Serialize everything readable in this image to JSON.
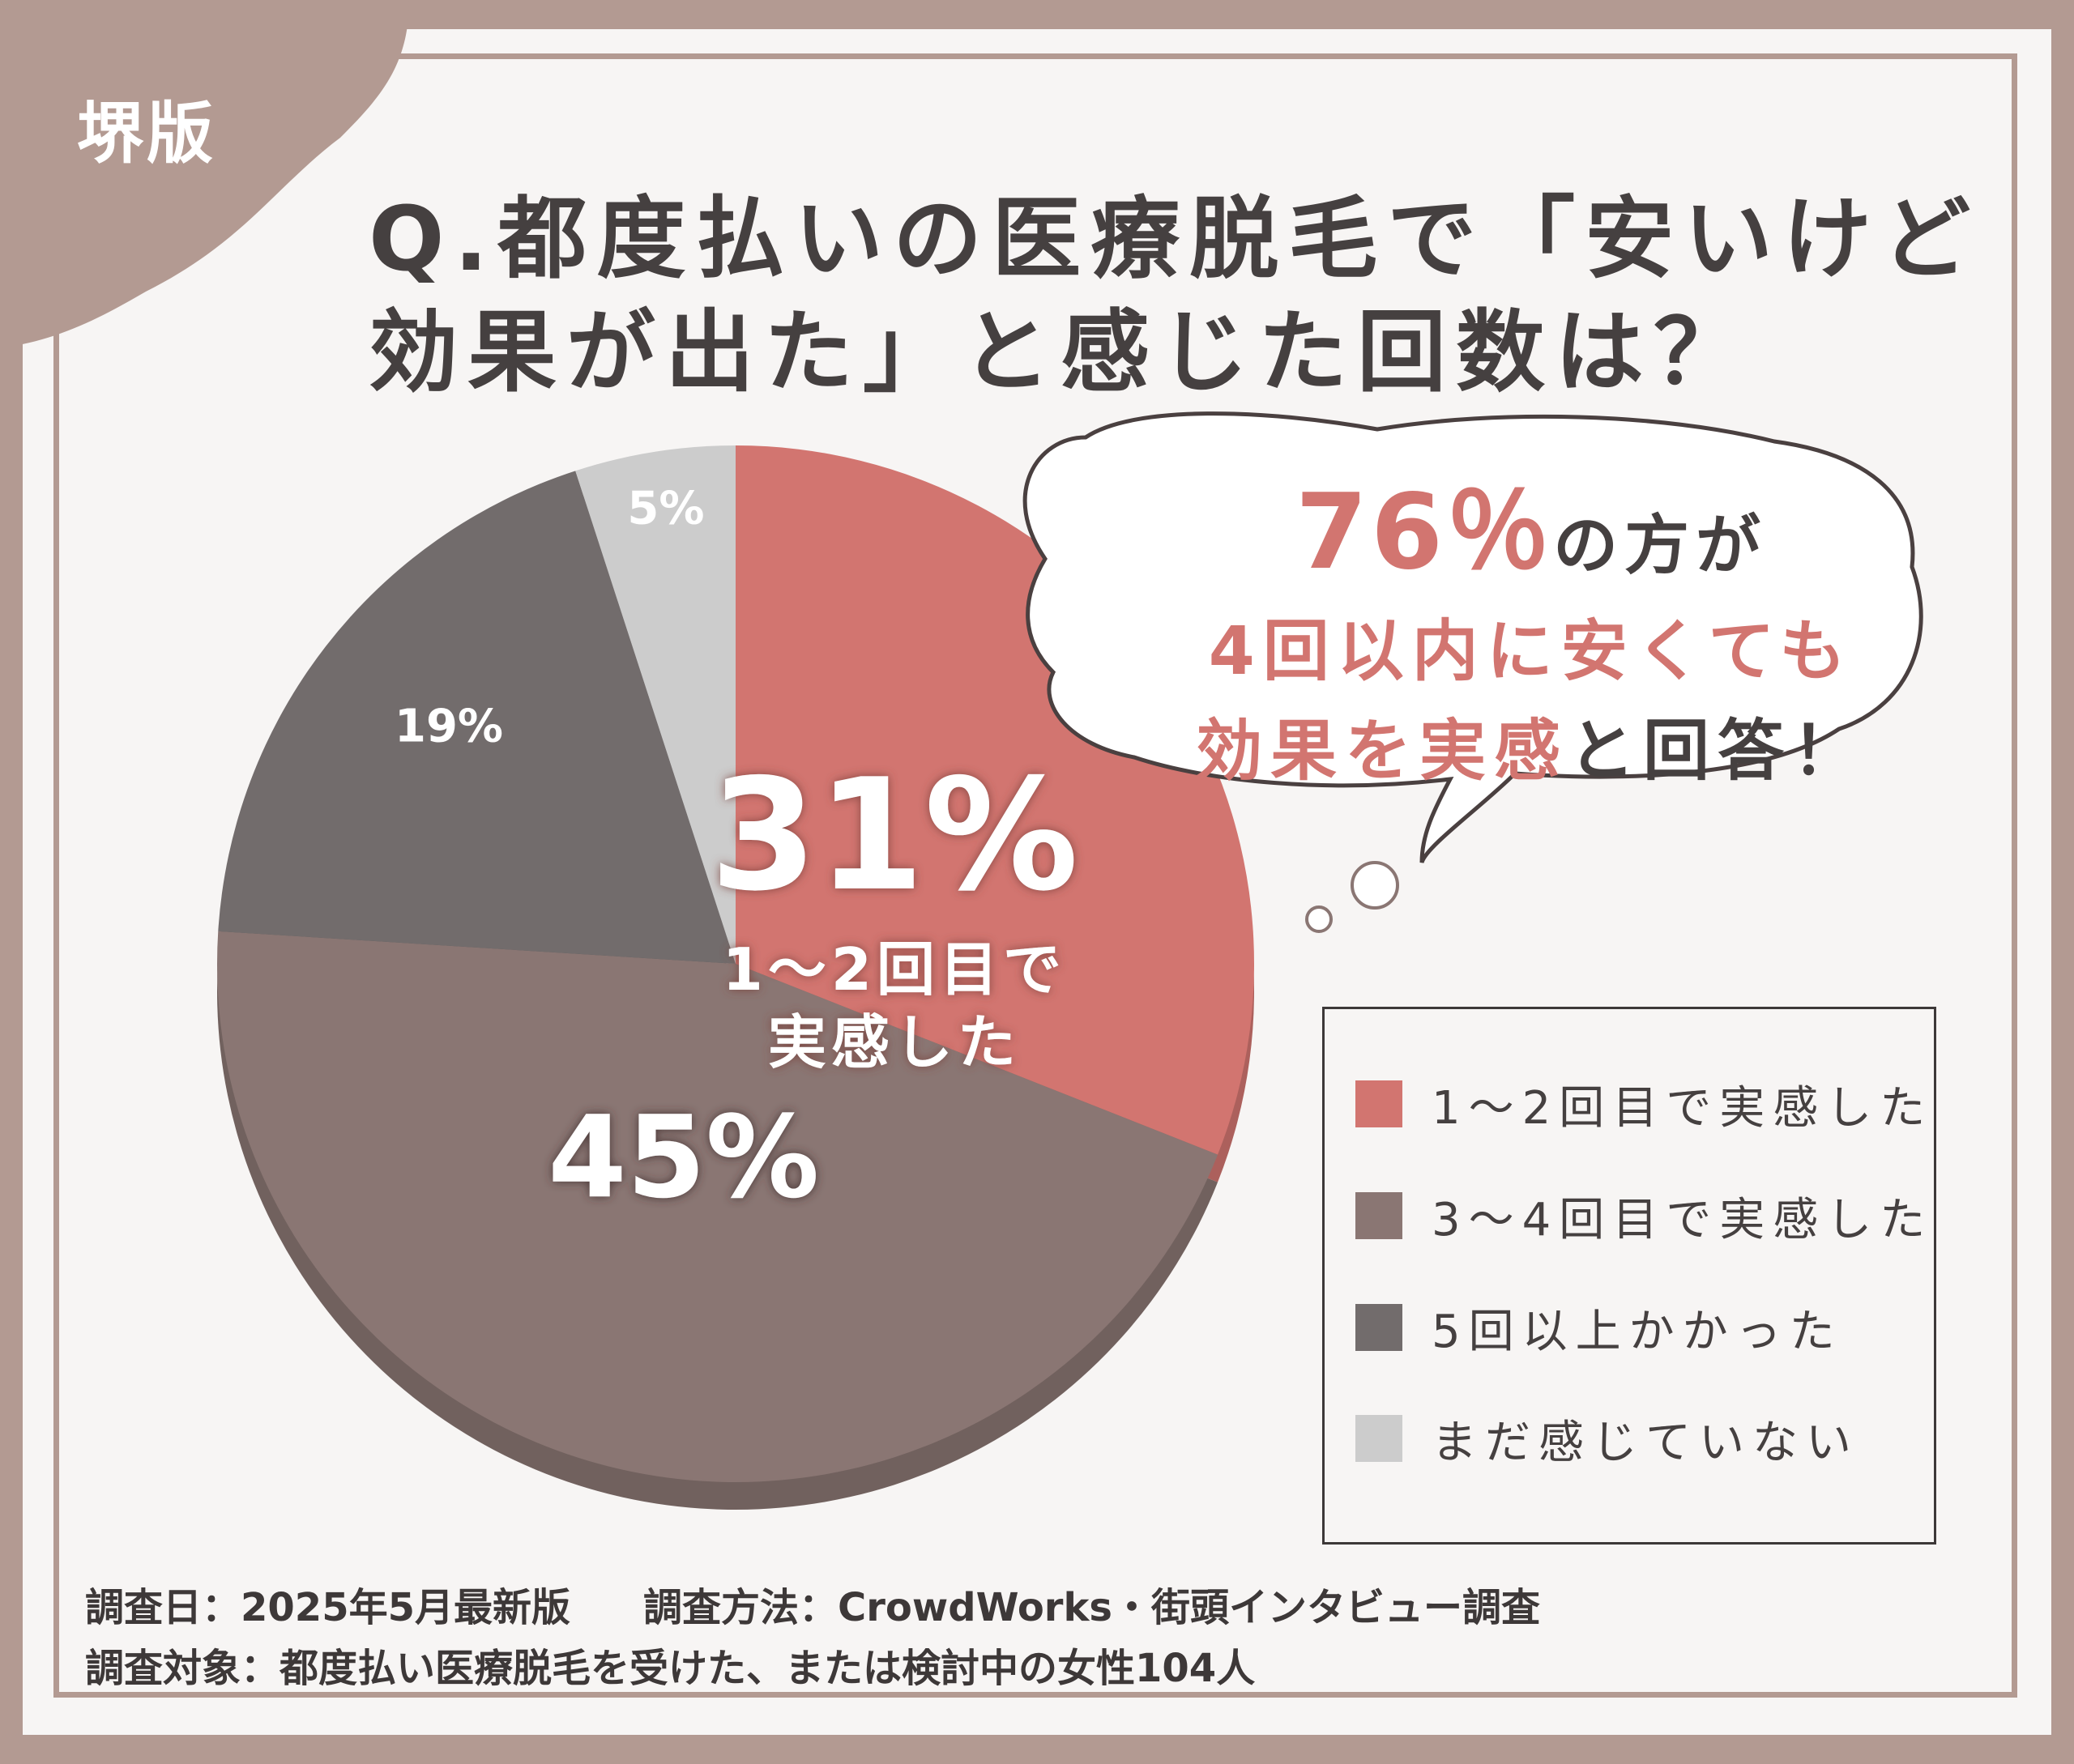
{
  "badge": "堺版",
  "title": {
    "line1": "Q.都度払いの医療脱毛で「安いけど",
    "line2": "効果が出た」と感じた回数は？"
  },
  "colors": {
    "frame": "#b39a92",
    "background": "#f7f5f4",
    "accent": "#d27570",
    "text": "#454040"
  },
  "chart_data": {
    "type": "pie",
    "slices": [
      {
        "label": "1～2回目で実感した",
        "value": 31,
        "color": "#d27570"
      },
      {
        "label": "3～4回目で実感した",
        "value": 45,
        "color": "#8a7673"
      },
      {
        "label": "5回以上かかった",
        "value": 19,
        "color": "#726c6c"
      },
      {
        "label": "まだ感じていない",
        "value": 5,
        "color": "#cccccc"
      }
    ],
    "slice_labels": [
      "31%",
      "45%",
      "19%",
      "5%"
    ],
    "highlight_caption": [
      "1～2回目で",
      "実感した"
    ],
    "legend_placement": "bottom-right"
  },
  "callout": {
    "big": "76％",
    "s1": "の方が",
    "line2": "4回以内に安くても",
    "line3_a": "効果を実感",
    "line3_b": "と回答！"
  },
  "legend": [
    {
      "label": "1～2回目で実感した",
      "color": "#d27570"
    },
    {
      "label": "3～4回目で実感した",
      "color": "#8a7673"
    },
    {
      "label": "5回以上かかった",
      "color": "#726c6c"
    },
    {
      "label": "まだ感じていない",
      "color": "#cccccc"
    }
  ],
  "footer": {
    "date": "調査日：2025年5月最新版",
    "method": "調査方法：CrowdWorks・街頭インタビュー調査",
    "target": "調査対象：都度払い医療脱毛を受けた、または検討中の女性104人"
  }
}
